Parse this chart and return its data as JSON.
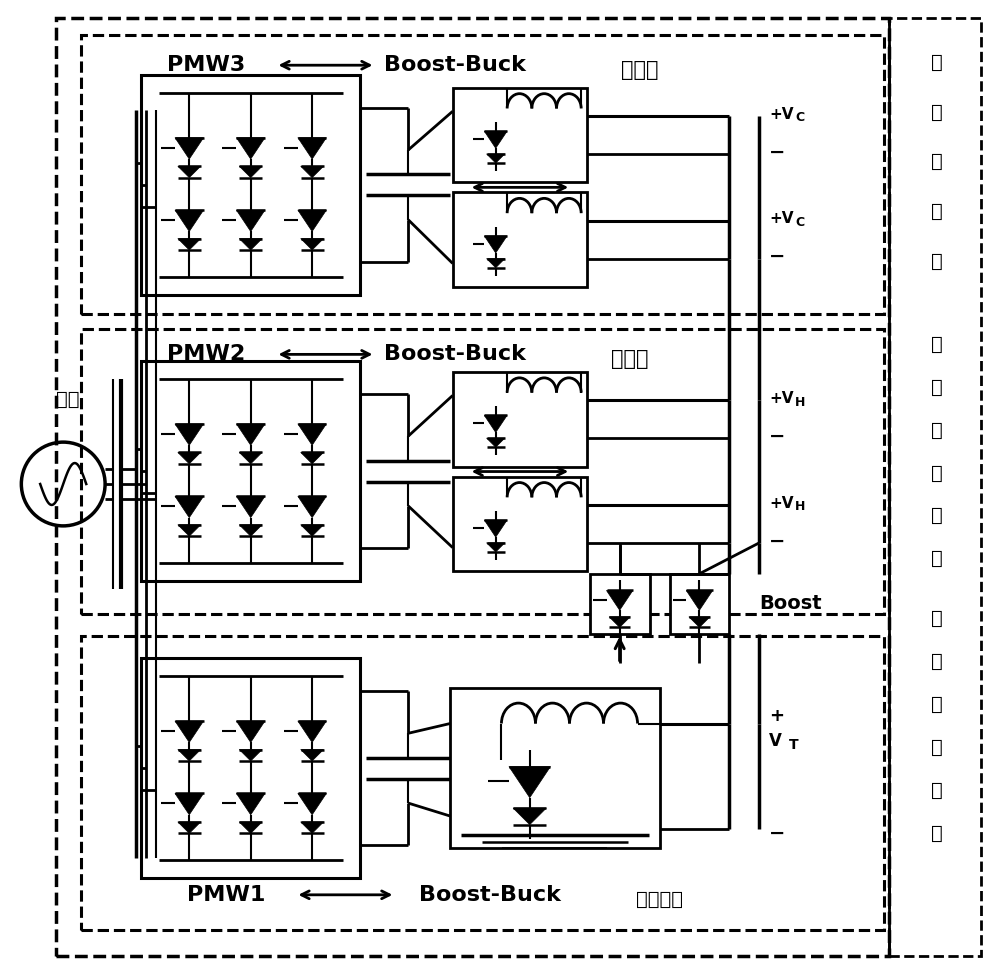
{
  "bg_color": "#ffffff",
  "sections": {
    "top": {
      "label": "充电站",
      "pmw": "PMW3",
      "right_labels": [
        "充",
        "电",
        "桩",
        "系",
        "统"
      ]
    },
    "mid": {
      "label": "换电站",
      "pmw": "PMW2",
      "right_labels": [
        "电",
        "池",
        "更",
        "换",
        "系",
        "统"
      ]
    },
    "bot": {
      "label": "梯级电站",
      "pmw": "PMW1",
      "right_labels": [
        "梯",
        "级",
        "储",
        "能",
        "系",
        "统"
      ]
    }
  },
  "grid_label": "电网",
  "boost_label": "Boost",
  "boost_buck": "Boost-Buck",
  "vt_label": "V",
  "vc_label": "V",
  "vh_label": "V"
}
